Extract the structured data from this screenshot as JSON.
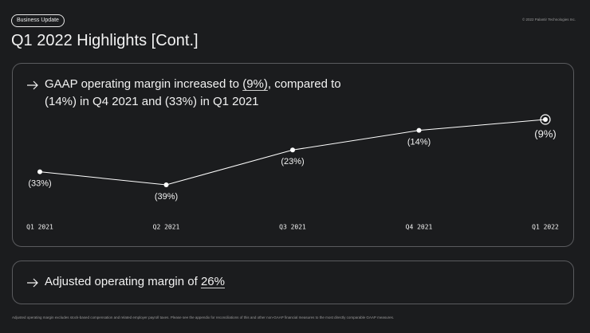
{
  "badge": "Business Update",
  "copyright": "© 2022 Palantir Technologies Inc.",
  "title": "Q1 2022 Highlights [Cont.]",
  "card1": {
    "text_before": "GAAP operating margin increased to ",
    "highlight": "(9%)",
    "text_after": ", compared to (14%) in Q4 2021 and (33%) in Q1 2021"
  },
  "chart_data": {
    "type": "line",
    "categories": [
      "Q1 2021",
      "Q2 2021",
      "Q3 2021",
      "Q4 2021",
      "Q1 2022"
    ],
    "values": [
      -33,
      -39,
      -23,
      -14,
      -9
    ],
    "value_labels": [
      "(33%)",
      "(39%)",
      "(23%)",
      "(14%)",
      "(9%)"
    ],
    "color": "#ffffff"
  },
  "card2": {
    "text_before": "Adjusted operating margin of ",
    "highlight": "26%"
  },
  "footnote": "Adjusted operating margin excludes stock-based compensation and related employer payroll taxes. Please see the appendix for reconciliations of this and other non-GAAP financial measures to the most directly comparable GAAP measures."
}
